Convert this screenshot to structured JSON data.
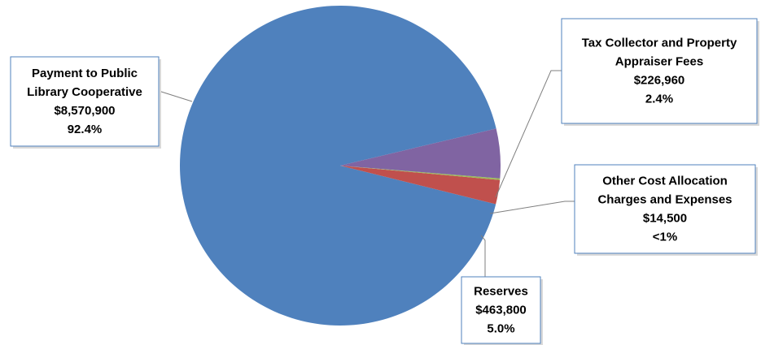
{
  "chart_data": {
    "type": "pie",
    "title": "",
    "slices": [
      {
        "label_lines": [
          "Payment to Public",
          "Library Cooperative"
        ],
        "amount": "$8,570,900",
        "percent_label": "92.4%",
        "value": 8570900,
        "color": "#4F81BD"
      },
      {
        "label_lines": [
          "Tax Collector and Property",
          "Appraiser Fees"
        ],
        "amount": "$226,960",
        "percent_label": "2.4%",
        "value": 226960,
        "color": "#C0504D"
      },
      {
        "label_lines": [
          "Other Cost Allocation",
          "Charges and Expenses"
        ],
        "amount": "$14,500",
        "percent_label": "<1%",
        "value": 14500,
        "color": "#9BBB59"
      },
      {
        "label_lines": [
          "Reserves"
        ],
        "amount": "$463,800",
        "percent_label": "5.0%",
        "value": 463800,
        "color": "#8064A2"
      }
    ],
    "label_box_border_color": "#4F81BD",
    "leader_line_color": "#7F7F7F"
  }
}
